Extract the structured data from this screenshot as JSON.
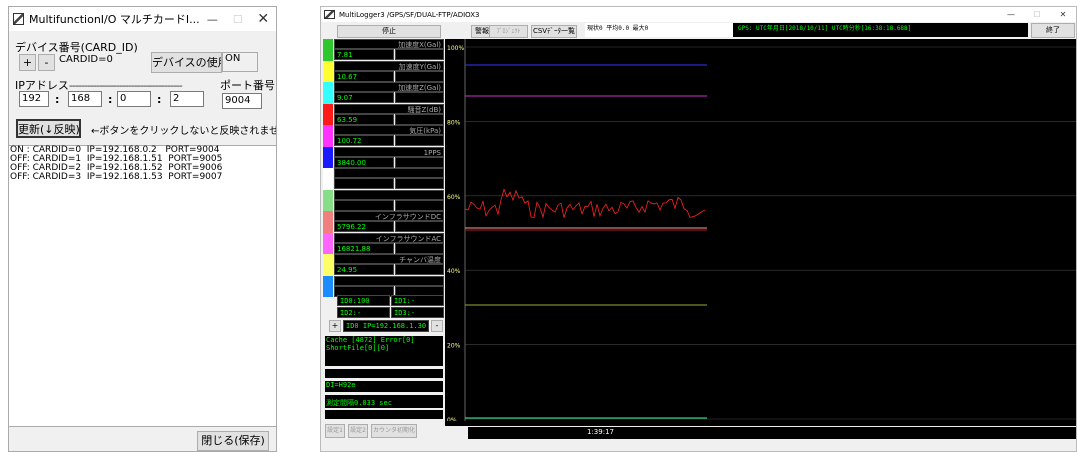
{
  "multi": {
    "title": "MultifunctionI/O マルチカードI...",
    "device_number_label": "デバイス番号(CARD_ID)",
    "plus": "+",
    "minus": "-",
    "card_id_value": "CARDID=0",
    "use_device_button": "デバイスの使用",
    "status_value": "ON",
    "ip_label": "IPアドレス",
    "port_label": "ポート番号",
    "ip": [
      "192",
      "168",
      "0",
      "2"
    ],
    "ip_sep": ":",
    "port": "9004",
    "update_button": "更新(↓反映)",
    "hint": "←ボタンをクリックしないと反映されません",
    "list": [
      "ON : CARDID=0  IP=192.168.0.2   PORT=9004",
      "OFF: CARDID=1  IP=192.168.1.51  PORT=9005",
      "OFF: CARDID=2  IP=192.168.1.52  PORT=9006",
      "OFF: CARDID=3  IP=192.168.1.53  PORT=9007"
    ],
    "close_button": "閉じる(保存)"
  },
  "logger": {
    "title": "MultiLogger3 /GPS/SF/DUAL-FTP/ADIOX3",
    "stop_button": "停止",
    "warning_button": "警報停止",
    "project_button": "ﾌﾟﾛｼﾞｪｸﾄ",
    "csv_button": "CSVﾃﾞｰﾀ一覧",
    "stats_text": "現状0 平均0.0 最大0",
    "gps_text": "GPS: UTC年月日[2018/10/11] UTC時分秒[16:38:18.688]",
    "end_button": "終了",
    "channels": [
      {
        "label": "加速度X(Gal)",
        "value": "7.81",
        "color": "#2ec82e"
      },
      {
        "label": "加速度Y(Gal)",
        "value": "10.67",
        "color": "#ffff33"
      },
      {
        "label": "加速度Z(Gal)",
        "value": "9.07",
        "color": "#33ffff"
      },
      {
        "label": "騒音Z(dB)",
        "value": "63.59",
        "color": "#ff1a1a"
      },
      {
        "label": "気圧(kPa)",
        "value": "100.72",
        "color": "#ff33ff"
      },
      {
        "label": "1PPS",
        "value": "3840.00",
        "color": "#1a1aff"
      },
      {
        "label": "",
        "value": "",
        "color": "#ffffff"
      },
      {
        "label": "",
        "value": "",
        "color": "#88dd88"
      },
      {
        "label": "インフラサウンドDC",
        "value": "5796.22",
        "color": "#f08080"
      },
      {
        "label": "インフラサウンドAC",
        "value": "16821.88",
        "color": "#ff66ff"
      },
      {
        "label": "チャンバ温度",
        "value": "24.95",
        "color": "#ffff66"
      },
      {
        "label": "",
        "value": "",
        "color": "#1a8cff"
      }
    ],
    "id_cells": [
      "ID0:100",
      "ID1:-",
      "ID2:-",
      "ID3:-"
    ],
    "id_plus": "+",
    "id_minus": "-",
    "id_select": "ID0 IP=192.168.1.30",
    "cache_line1": "Cache [4872] Error[0]",
    "cache_line2": "ShortFile[0][0]",
    "di_text": "DI=H92e",
    "interval_text": "測定間隔0.033 sec",
    "settings1": "設定1",
    "settings2": "設定2",
    "counter_reset": "カウンタ初期化",
    "time_text": "1:39:17",
    "pct_labels": [
      "100%",
      "80%",
      "60%",
      "40%",
      "20%",
      "0%"
    ],
    "trace_colors": {
      "blue": "#3333ff",
      "magenta": "#cc33cc",
      "red": "#ff2222",
      "pink": "#ff9999",
      "olive": "#99aa33",
      "green": "#33ff99"
    }
  }
}
